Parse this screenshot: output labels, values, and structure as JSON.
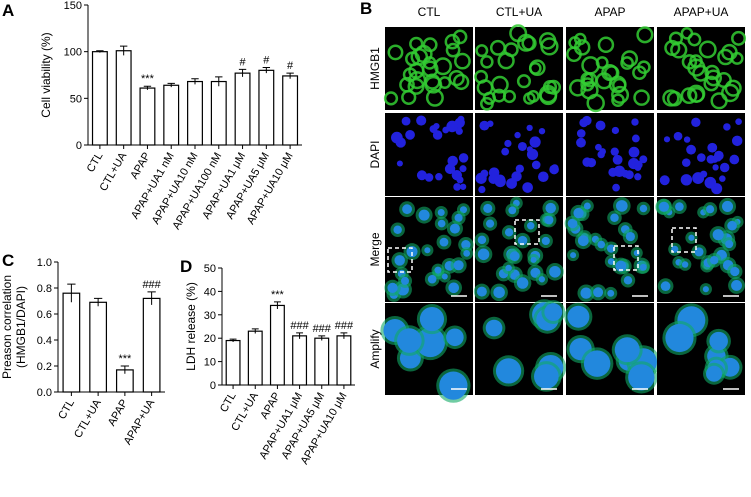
{
  "chart_data": [
    {
      "type": "bar",
      "panel": "A",
      "y_label": [
        "Cell viability (%)"
      ],
      "categories": [
        "CTL",
        "CTL+UA",
        "APAP",
        "APAP+UA1 nM",
        "APAP+UA10 nM",
        "APAP+UA100 nM",
        "APAP+UA1 μM",
        "APAP+UA5 μM",
        "APAP+UA10 μM"
      ],
      "values": [
        100,
        101,
        61,
        64,
        68,
        68,
        77,
        80,
        74
      ],
      "errors": [
        1,
        5,
        2,
        2,
        3,
        5,
        4,
        3,
        3
      ],
      "annotations": [
        null,
        null,
        "***",
        null,
        null,
        null,
        "#",
        "#",
        "#"
      ],
      "ylim": [
        0,
        150
      ],
      "yticks": [
        0,
        50,
        100,
        150
      ]
    },
    {
      "type": "bar",
      "panel": "C",
      "y_label": [
        "Preason correlation",
        "(HMGB1/DAPI)"
      ],
      "categories": [
        "CTL",
        "CTL+UA",
        "APAP",
        "APAP+UA"
      ],
      "values": [
        0.76,
        0.69,
        0.17,
        0.72
      ],
      "errors": [
        0.07,
        0.03,
        0.03,
        0.05
      ],
      "annotations": [
        null,
        null,
        "***",
        "###"
      ],
      "ylim": [
        0,
        1.0
      ],
      "yticks": [
        {
          "value": 0,
          "label": "0.0"
        },
        0.2,
        0.4,
        0.6,
        0.8,
        {
          "value": 1.0,
          "label": "1.0"
        }
      ]
    },
    {
      "type": "bar",
      "panel": "D",
      "y_label": [
        "LDH release (%)"
      ],
      "categories": [
        "CTL",
        "CTL+UA",
        "APAP",
        "APAP+UA1 μM",
        "APAP+UA5 μM",
        "APAP+UA10 μM"
      ],
      "values": [
        19,
        23,
        34,
        21,
        20,
        21
      ],
      "errors": [
        0.6,
        1,
        1.5,
        1.3,
        1,
        1.3
      ],
      "annotations": [
        null,
        null,
        "***",
        "###",
        "###",
        "###"
      ],
      "ylim": [
        0,
        50
      ],
      "yticks": [
        0,
        10,
        20,
        30,
        40,
        50
      ]
    }
  ],
  "panel_b": {
    "panel": "B",
    "columns": [
      "CTL",
      "CTL+UA",
      "APAP",
      "APAP+UA"
    ],
    "rows": [
      "HMGB1",
      "DAPI",
      "Merge",
      "Amplify"
    ]
  }
}
